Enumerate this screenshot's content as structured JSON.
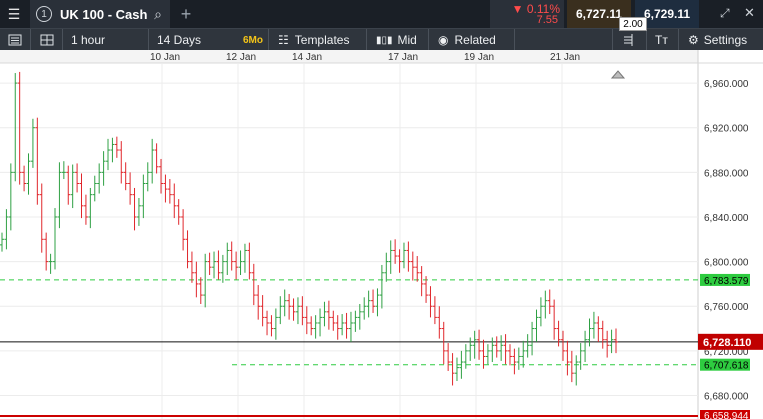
{
  "window": {
    "menu_icon": "hamburger-icon",
    "tab_number": "1",
    "instrument": "UK 100 - Cash",
    "search_icon": "search-icon",
    "add_icon": "plus-icon",
    "change_pct": "▼ 0.11%",
    "change_pts": "7.55",
    "sell_price": "6,727.11",
    "spread": "2.00",
    "buy_price": "6,729.11",
    "expand_icon": "expand-icon",
    "close_icon": "close-icon"
  },
  "toolbar": {
    "menu_icon": "list-icon",
    "layout_icon": "grid-icon",
    "interval": "1 hour",
    "range": "14 Days",
    "range_badge": "6Mo",
    "templates": "Templates",
    "price_type": "Mid",
    "related": "Related",
    "settings": "Settings"
  },
  "colors": {
    "up": "#2ea043",
    "down": "#e0262b",
    "current_price_bg": "#c00000",
    "level_green": "#2ecc40",
    "low_line": "#cc0000"
  },
  "chart_data": {
    "type": "ohlc",
    "x_labels": [
      "10 Jan",
      "12 Jan",
      "14 Jan",
      "17 Jan",
      "19 Jan",
      "21 Jan"
    ],
    "y_ticks": [
      "6,960.000",
      "6,920.000",
      "6,880.000",
      "6,840.000",
      "6,800.000",
      "6,760.000",
      "6,720.000",
      "6,680.000"
    ],
    "ylim": [
      6658.944,
      6978
    ],
    "current_price": "6,728.110",
    "horizontal_levels": [
      {
        "label": "6,783.579",
        "value": 6783.579,
        "style": "dashed-green"
      },
      {
        "label": "6,707.618",
        "value": 6707.618,
        "style": "dashed-green"
      },
      {
        "label": "6,658.944",
        "value": 6658.944,
        "style": "solid-red"
      }
    ],
    "close_path": [
      6820,
      6840,
      6880,
      6960,
      6880,
      6870,
      6890,
      6920,
      6860,
      6820,
      6800,
      6800,
      6840,
      6880,
      6880,
      6860,
      6880,
      6870,
      6850,
      6840,
      6860,
      6870,
      6880,
      6890,
      6900,
      6905,
      6900,
      6880,
      6870,
      6860,
      6840,
      6850,
      6870,
      6880,
      6900,
      6885,
      6870,
      6865,
      6860,
      6850,
      6840,
      6820,
      6800,
      6790,
      6780,
      6770,
      6800,
      6795,
      6800,
      6790,
      6800,
      6810,
      6800,
      6795,
      6800,
      6810,
      6790,
      6770,
      6760,
      6750,
      6745,
      6740,
      6750,
      6760,
      6765,
      6760,
      6755,
      6760,
      6750,
      6745,
      6740,
      6745,
      6750,
      6755,
      6750,
      6745,
      6740,
      6745,
      6740,
      6745,
      6750,
      6755,
      6760,
      6765,
      6760,
      6770,
      6790,
      6800,
      6810,
      6805,
      6800,
      6810,
      6800,
      6795,
      6790,
      6780,
      6770,
      6760,
      6750,
      6740,
      6720,
      6710,
      6700,
      6705,
      6710,
      6720,
      6725,
      6730,
      6720,
      6715,
      6720,
      6725,
      6720,
      6725,
      6720,
      6715,
      6710,
      6715,
      6720,
      6725,
      6740,
      6750,
      6760,
      6765,
      6760,
      6740,
      6730,
      6720,
      6710,
      6700,
      6710,
      6720,
      6730,
      6740,
      6745,
      6740,
      6730,
      6725,
      6730,
      6728
    ]
  }
}
